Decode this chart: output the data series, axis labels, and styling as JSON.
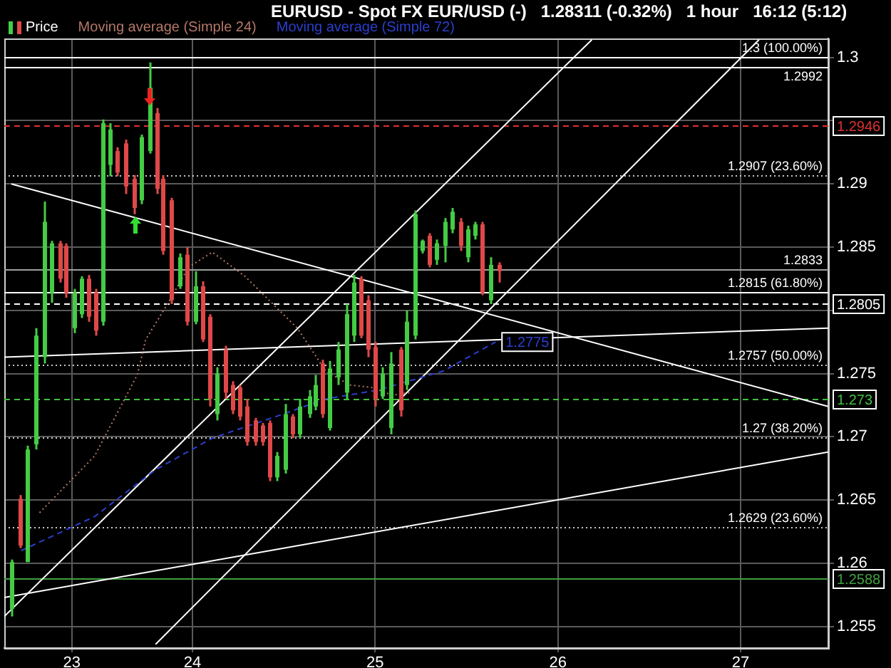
{
  "chart_data": {
    "type": "candlestick",
    "title": "EURUSD - Spot FX EUR/USD (-)   1.28311 (-0.32%)   1 hour   16:12 (5:12)",
    "xlim": [
      22.97,
      27.48
    ],
    "xticks": [
      {
        "value": 23.34,
        "label": "23"
      },
      24,
      25,
      26,
      27
    ],
    "ylim": [
      1.2533,
      1.3015
    ],
    "yticks": [
      1.255,
      1.26,
      1.265,
      1.27,
      1.275,
      {
        "value": 1.28,
        "label": null
      },
      1.285,
      1.29,
      {
        "value": 1.295,
        "label": null
      },
      1.3
    ],
    "grid": true,
    "legend": "top left",
    "series": [
      {
        "name": "Price",
        "type": "candlestick",
        "x": [
          23.008,
          23.054,
          23.093,
          23.14,
          23.186,
          23.225,
          23.271,
          23.302,
          23.349,
          23.388,
          23.434,
          23.473,
          23.512,
          23.55,
          23.589,
          23.636,
          23.682,
          23.721,
          23.767,
          23.806,
          23.837,
          23.884,
          23.93,
          23.969,
          24.016,
          24.054,
          24.093,
          24.132,
          24.178,
          24.217,
          24.256,
          24.295,
          24.341,
          24.38,
          24.419,
          24.457,
          24.504,
          24.55,
          24.589,
          24.636,
          24.674,
          24.713,
          24.752,
          24.798,
          24.845,
          24.884,
          24.922,
          24.961,
          25.0,
          25.039,
          25.085,
          25.14,
          25.171,
          25.217,
          25.256,
          25.295,
          25.333,
          25.38,
          25.419,
          25.465,
          25.504,
          25.543,
          25.581,
          25.628,
          25.674
        ],
        "ohlc": [
          [
            1.2564,
            1.2603,
            1.2558,
            1.2601
          ],
          [
            1.2651,
            1.2654,
            1.2612,
            1.2614
          ],
          [
            1.2601,
            1.2693,
            1.2601,
            1.269
          ],
          [
            1.2694,
            1.2786,
            1.269,
            1.278
          ],
          [
            1.2763,
            1.2886,
            1.2758,
            1.287
          ],
          [
            1.2814,
            1.2855,
            1.2806,
            1.2853
          ],
          [
            1.2853,
            1.2855,
            1.2822,
            1.2825
          ],
          [
            1.2851,
            1.2853,
            1.281,
            1.2814
          ],
          [
            1.2786,
            1.2817,
            1.2782,
            1.2814
          ],
          [
            1.2797,
            1.2827,
            1.2794,
            1.2825
          ],
          [
            1.2825,
            1.2828,
            1.2791,
            1.2795
          ],
          [
            1.2814,
            1.2817,
            1.278,
            1.2784
          ],
          [
            1.2791,
            1.2951,
            1.2788,
            1.2948
          ],
          [
            1.2915,
            1.2948,
            1.2906,
            1.2943
          ],
          [
            1.2926,
            1.2929,
            1.2906,
            1.2909
          ],
          [
            1.2932,
            1.2935,
            1.2892,
            1.2898
          ],
          [
            1.2904,
            1.2907,
            1.2876,
            1.2881
          ],
          [
            1.2887,
            1.2939,
            1.2884,
            1.2937
          ],
          [
            1.2926,
            1.2996,
            1.2924,
            1.2976
          ],
          [
            1.2956,
            1.296,
            1.2892,
            1.2896
          ],
          [
            1.2904,
            1.2907,
            1.2844,
            1.2847
          ],
          [
            1.2887,
            1.2889,
            1.2805,
            1.2808
          ],
          [
            1.2819,
            1.2845,
            1.2817,
            1.2842
          ],
          [
            1.2844,
            1.285,
            1.2788,
            1.2791
          ],
          [
            1.2791,
            1.2831,
            1.2789,
            1.2819
          ],
          [
            1.2819,
            1.2823,
            1.2775,
            1.2777
          ],
          [
            1.2795,
            1.2797,
            1.2724,
            1.273
          ],
          [
            1.2718,
            1.2755,
            1.2713,
            1.275
          ],
          [
            1.2769,
            1.2772,
            1.273,
            1.2735
          ],
          [
            1.2741,
            1.2744,
            1.2718,
            1.2721
          ],
          [
            1.2739,
            1.2741,
            1.2713,
            1.2716
          ],
          [
            1.2724,
            1.273,
            1.2693,
            1.2696
          ],
          [
            1.2713,
            1.2715,
            1.2693,
            1.2696
          ],
          [
            1.2709,
            1.2711,
            1.2693,
            1.2696
          ],
          [
            1.2711,
            1.2713,
            1.2665,
            1.2668
          ],
          [
            1.2668,
            1.2688,
            1.2665,
            1.2685
          ],
          [
            1.2674,
            1.2726,
            1.2671,
            1.2718
          ],
          [
            1.2716,
            1.2718,
            1.2699,
            1.2702
          ],
          [
            1.2702,
            1.273,
            1.2699,
            1.2724
          ],
          [
            1.2718,
            1.2737,
            1.2715,
            1.2732
          ],
          [
            1.2724,
            1.2749,
            1.2721,
            1.2741
          ],
          [
            1.2758,
            1.2761,
            1.2715,
            1.2718
          ],
          [
            1.2707,
            1.276,
            1.2705,
            1.2754
          ],
          [
            1.2747,
            1.2775,
            1.2741,
            1.2769
          ],
          [
            1.2735,
            1.2805,
            1.273,
            1.2797
          ],
          [
            1.278,
            1.2828,
            1.2775,
            1.2822
          ],
          [
            1.2825,
            1.2827,
            1.2778,
            1.278
          ],
          [
            1.2808,
            1.2812,
            1.2763,
            1.2769
          ],
          [
            1.2771,
            1.2775,
            1.2724,
            1.273
          ],
          [
            1.2732,
            1.2755,
            1.273,
            1.275
          ],
          [
            1.2707,
            1.2767,
            1.2702,
            1.2758
          ],
          [
            1.2769,
            1.2771,
            1.2716,
            1.2721
          ],
          [
            1.2741,
            1.28,
            1.2737,
            1.2791
          ],
          [
            1.278,
            1.2879,
            1.2777,
            1.2876
          ],
          [
            1.2847,
            1.2856,
            1.2845,
            1.2855
          ],
          [
            1.2859,
            1.2861,
            1.2834,
            1.2836
          ],
          [
            1.284,
            1.2856,
            1.2836,
            1.2853
          ],
          [
            1.2851,
            1.2873,
            1.2838,
            1.287
          ],
          [
            1.2864,
            1.2881,
            1.2861,
            1.2878
          ],
          [
            1.287,
            1.2873,
            1.2847,
            1.2851
          ],
          [
            1.2842,
            1.2867,
            1.2838,
            1.2864
          ],
          [
            1.2859,
            1.287,
            1.2856,
            1.2868
          ],
          [
            1.2868,
            1.287,
            1.2812,
            1.2814
          ],
          [
            1.2808,
            1.2842,
            1.2805,
            1.2836
          ],
          [
            1.2836,
            1.2838,
            1.2822,
            1.2831
          ]
        ],
        "colors": [
          "#44cc44",
          "#e04848",
          "#44cc44",
          "#44cc44",
          "#44cc44",
          "#44cc44",
          "#e04848",
          "#e04848",
          "#44cc44",
          "#44cc44",
          "#e04848",
          "#e04848",
          "#44cc44",
          "#44cc44",
          "#e04848",
          "#e04848",
          "#e04848",
          "#44cc44",
          "#44cc44",
          "#e04848",
          "#e04848",
          "#e04848",
          "#44cc44",
          "#e04848",
          "#44cc44",
          "#e04848",
          "#e04848",
          "#44cc44",
          "#e04848",
          "#e04848",
          "#e04848",
          "#e04848",
          "#e04848",
          "#e04848",
          "#e04848",
          "#44cc44",
          "#44cc44",
          "#e04848",
          "#44cc44",
          "#44cc44",
          "#44cc44",
          "#e04848",
          "#44cc44",
          "#44cc44",
          "#44cc44",
          "#44cc44",
          "#e04848",
          "#e04848",
          "#e04848",
          "#44cc44",
          "#44cc44",
          "#e04848",
          "#44cc44",
          "#44cc44",
          "#44cc44",
          "#e04848",
          "#44cc44",
          "#44cc44",
          "#44cc44",
          "#e04848",
          "#44cc44",
          "#44cc44",
          "#e04848",
          "#44cc44",
          "#e04848"
        ]
      },
      {
        "name": "Moving average (Simple 24)",
        "type": "line",
        "color": "#b47868",
        "line_style": "dotted",
        "x": [
          23.163,
          23.465,
          23.698,
          23.744,
          23.876,
          23.977,
          24.109,
          24.287,
          24.496,
          24.574,
          24.729,
          24.86,
          24.984,
          25.093,
          25.194
        ],
        "values": [
          1.264,
          1.2685,
          1.2749,
          1.2777,
          1.2808,
          1.2834,
          1.2846,
          1.2827,
          1.2797,
          1.2786,
          1.2752,
          1.2741,
          1.2739,
          1.2733,
          1.2735
        ]
      },
      {
        "name": "Moving average (Simple 72)",
        "type": "line",
        "color": "#2b3fd0",
        "line_style": "dashed",
        "x": [
          23.062,
          23.465,
          23.798,
          24.109,
          24.496,
          24.729,
          25.016,
          25.372,
          25.659
        ],
        "values": [
          1.261,
          1.2637,
          1.2674,
          1.2699,
          1.2718,
          1.273,
          1.2737,
          1.2752,
          1.2775
        ]
      },
      {
        "type": "line",
        "color": "#ffffff",
        "line_style": "solid",
        "x": [
          23.008,
          27.48
        ],
        "values": [
          1.29,
          1.2724
        ]
      },
      {
        "type": "line",
        "color": "#ffffff",
        "line_style": "solid",
        "x": [
          22.97,
          26.186
        ],
        "values": [
          1.2558,
          1.3014
        ]
      },
      {
        "type": "line",
        "color": "#ffffff",
        "line_style": "solid",
        "x": [
          23.798,
          27.101
        ],
        "values": [
          1.2536,
          1.3014
        ]
      },
      {
        "type": "line",
        "color": "#ffffff",
        "line_style": "solid",
        "x": [
          22.97,
          27.48
        ],
        "values": [
          1.2573,
          1.2688
        ]
      },
      {
        "type": "line",
        "color": "#ffffff",
        "line_style": "solid",
        "x": [
          22.97,
          27.48
        ],
        "values": [
          1.2763,
          1.2786
        ]
      }
    ],
    "ref_lines": [
      {
        "axis": "y",
        "value": 1.3,
        "label": "1.3 (100.00%)",
        "color": "#ffffff",
        "line_style": "solid"
      },
      {
        "axis": "y",
        "value": 1.2992,
        "label": "1.2992",
        "color": "#ffffff",
        "line_style": "solid"
      },
      {
        "axis": "y",
        "value": 1.2907,
        "label": "1.2907 (23.60%)",
        "color": "#c8c8c8",
        "line_style": "dotted"
      },
      {
        "axis": "y",
        "value": 1.2833,
        "label": "1.2833",
        "color": "#a0a0a0",
        "line_style": "solid"
      },
      {
        "axis": "y",
        "value": 1.2815,
        "label": "1.2815 (61.80%)",
        "color": "#ffffff",
        "line_style": "solid"
      },
      {
        "axis": "y",
        "value": 1.2757,
        "label": "1.2757 (50.00%)",
        "color": "#c8c8c8",
        "line_style": "dotted"
      },
      {
        "axis": "y",
        "value": 1.27,
        "label": "1.27 (38.20%)",
        "color": "#c8c8c8",
        "line_style": "dotted"
      },
      {
        "axis": "y",
        "value": 1.2629,
        "label": "1.2629 (23.60%)",
        "color": "#c8c8c8",
        "line_style": "dotted"
      },
      {
        "axis": "y",
        "value": 1.2946,
        "label": "1.2946",
        "color": "#e03030",
        "line_style": "dashed"
      },
      {
        "axis": "y",
        "value": 1.2805,
        "label": "1.2805",
        "color": "#ffffff",
        "line_style": "dashed"
      },
      {
        "axis": "y",
        "value": 1.273,
        "label": "1.273",
        "color": "#40c040",
        "line_style": "dashed"
      },
      {
        "axis": "y",
        "value": 1.2588,
        "label": "1.2588",
        "color": "#40a040",
        "line_style": "solid"
      }
    ],
    "annotations": [
      {
        "text": "1.2775",
        "x": 25.659,
        "y": 1.2775
      }
    ]
  }
}
